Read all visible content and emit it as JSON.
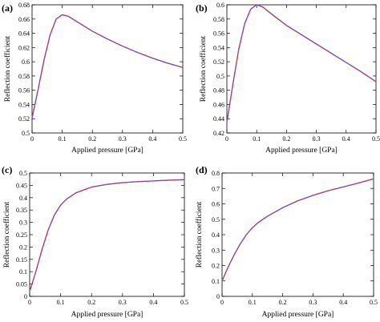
{
  "figure": {
    "series_colors": {
      "red": "#d62728",
      "blue": "#5a5af0"
    }
  },
  "chart_data": [
    {
      "panel_label": "(a)",
      "type": "line",
      "xlabel": "Applied pressure [GPa]",
      "ylabel": "Reflection coefficient",
      "xlim": [
        0,
        0.5
      ],
      "ylim": [
        0.5,
        0.68
      ],
      "xticks": [
        0,
        0.1,
        0.2,
        0.3,
        0.4,
        0.5
      ],
      "yticks": [
        0.5,
        0.52,
        0.54,
        0.56,
        0.58,
        0.6,
        0.62,
        0.64,
        0.66,
        0.68
      ],
      "x": [
        0,
        0.02,
        0.04,
        0.06,
        0.08,
        0.1,
        0.12,
        0.15,
        0.2,
        0.25,
        0.3,
        0.35,
        0.4,
        0.45,
        0.5
      ],
      "series": [
        {
          "color": "#d62728",
          "dash": "solid",
          "values": [
            0.521,
            0.561,
            0.603,
            0.638,
            0.66,
            0.666,
            0.664,
            0.656,
            0.643,
            0.632,
            0.622,
            0.613,
            0.605,
            0.598,
            0.592
          ]
        },
        {
          "color": "#5a5af0",
          "dash": "dashed",
          "values": [
            0.521,
            0.561,
            0.603,
            0.638,
            0.66,
            0.666,
            0.664,
            0.656,
            0.643,
            0.632,
            0.622,
            0.613,
            0.605,
            0.598,
            0.592
          ]
        }
      ]
    },
    {
      "panel_label": "(b)",
      "type": "line",
      "xlabel": "Applied pressure [GPa]",
      "ylabel": "Reflection coefficient",
      "xlim": [
        0,
        0.5
      ],
      "ylim": [
        0.42,
        0.6
      ],
      "xticks": [
        0,
        0.1,
        0.2,
        0.3,
        0.4,
        0.5
      ],
      "yticks": [
        0.42,
        0.44,
        0.46,
        0.48,
        0.5,
        0.52,
        0.54,
        0.56,
        0.58,
        0.6
      ],
      "x": [
        0,
        0.02,
        0.04,
        0.06,
        0.08,
        0.1,
        0.12,
        0.15,
        0.2,
        0.25,
        0.3,
        0.35,
        0.4,
        0.45,
        0.5
      ],
      "series": [
        {
          "color": "#d62728",
          "dash": "solid",
          "values": [
            0.435,
            0.488,
            0.538,
            0.574,
            0.594,
            0.6,
            0.597,
            0.587,
            0.571,
            0.558,
            0.545,
            0.532,
            0.519,
            0.506,
            0.492
          ]
        },
        {
          "color": "#5a5af0",
          "dash": "dashed",
          "values": [
            0.435,
            0.488,
            0.538,
            0.574,
            0.594,
            0.6,
            0.597,
            0.587,
            0.571,
            0.558,
            0.545,
            0.532,
            0.519,
            0.506,
            0.492
          ]
        }
      ]
    },
    {
      "panel_label": "(c)",
      "type": "line",
      "xlabel": "Applied pressure [GPa]",
      "ylabel": "Reflection coefficient",
      "xlim": [
        0,
        0.5
      ],
      "ylim": [
        0,
        0.5
      ],
      "xticks": [
        0,
        0.1,
        0.2,
        0.3,
        0.4,
        0.5
      ],
      "yticks": [
        0,
        0.05,
        0.1,
        0.15,
        0.2,
        0.25,
        0.3,
        0.35,
        0.4,
        0.45,
        0.5
      ],
      "x": [
        0,
        0.02,
        0.04,
        0.06,
        0.08,
        0.1,
        0.12,
        0.15,
        0.2,
        0.25,
        0.3,
        0.35,
        0.4,
        0.45,
        0.5
      ],
      "series": [
        {
          "color": "#d62728",
          "dash": "solid",
          "values": [
            0.02,
            0.1,
            0.19,
            0.27,
            0.33,
            0.37,
            0.395,
            0.42,
            0.443,
            0.454,
            0.461,
            0.465,
            0.468,
            0.471,
            0.473
          ]
        },
        {
          "color": "#5a5af0",
          "dash": "dashed",
          "values": [
            0.02,
            0.1,
            0.19,
            0.27,
            0.33,
            0.37,
            0.395,
            0.42,
            0.443,
            0.454,
            0.461,
            0.465,
            0.468,
            0.471,
            0.473
          ]
        }
      ]
    },
    {
      "panel_label": "(d)",
      "type": "line",
      "xlabel": "Applied pressure [GPa]",
      "ylabel": "Reflection coefficient",
      "xlim": [
        0,
        0.5
      ],
      "ylim": [
        0,
        0.8
      ],
      "xticks": [
        0,
        0.1,
        0.2,
        0.3,
        0.4,
        0.5
      ],
      "yticks": [
        0,
        0.1,
        0.2,
        0.3,
        0.4,
        0.5,
        0.6,
        0.7,
        0.8
      ],
      "x": [
        0,
        0.02,
        0.04,
        0.06,
        0.08,
        0.1,
        0.12,
        0.15,
        0.2,
        0.25,
        0.3,
        0.35,
        0.4,
        0.45,
        0.5
      ],
      "series": [
        {
          "color": "#d62728",
          "dash": "solid",
          "values": [
            0.1,
            0.19,
            0.27,
            0.34,
            0.4,
            0.445,
            0.48,
            0.52,
            0.575,
            0.62,
            0.655,
            0.685,
            0.71,
            0.735,
            0.762
          ]
        },
        {
          "color": "#5a5af0",
          "dash": "dashed",
          "values": [
            0.1,
            0.19,
            0.27,
            0.34,
            0.4,
            0.445,
            0.48,
            0.52,
            0.575,
            0.62,
            0.655,
            0.685,
            0.71,
            0.735,
            0.762
          ]
        }
      ]
    }
  ]
}
